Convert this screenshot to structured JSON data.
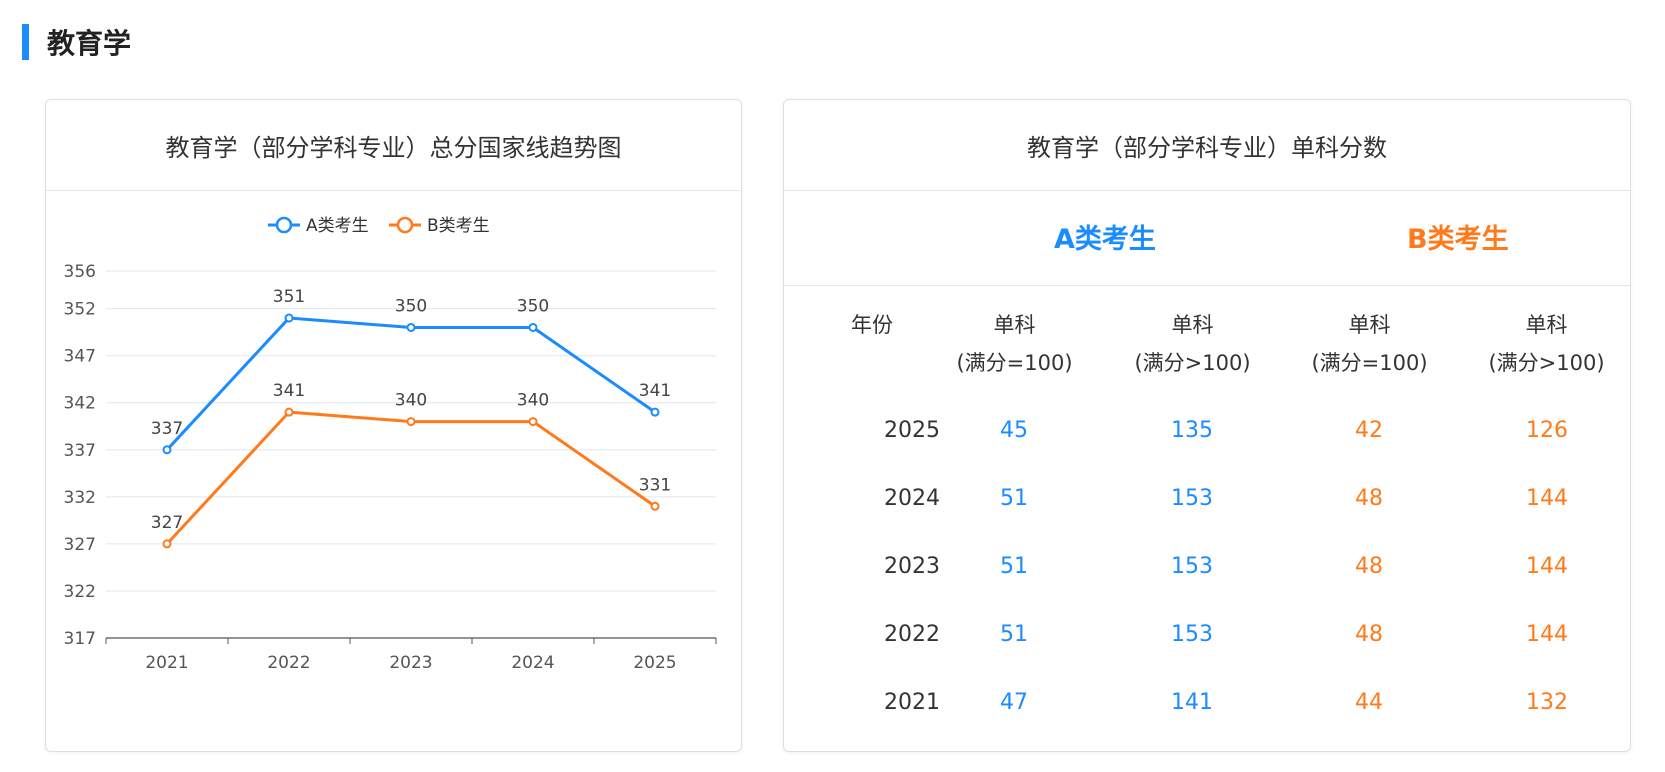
{
  "section": {
    "title": "教育学"
  },
  "chart_card": {
    "title": "教育学（部分学科专业）总分国家线趋势图"
  },
  "table_card": {
    "title": "教育学（部分学科专业）单科分数",
    "type_a": "A类考生",
    "type_b": "B类考生",
    "headers": {
      "year": "年份",
      "a_single_100": [
        "单科",
        "(满分=100)"
      ],
      "a_single_gt100": [
        "单科",
        "(满分>100)"
      ],
      "b_single_100": [
        "单科",
        "(满分=100)"
      ],
      "b_single_gt100": [
        "单科",
        "(满分>100)"
      ]
    },
    "rows": [
      {
        "year": "2025",
        "a100": "45",
        "a_gt100": "135",
        "b100": "42",
        "b_gt100": "126"
      },
      {
        "year": "2024",
        "a100": "51",
        "a_gt100": "153",
        "b100": "48",
        "b_gt100": "144"
      },
      {
        "year": "2023",
        "a100": "51",
        "a_gt100": "153",
        "b100": "48",
        "b_gt100": "144"
      },
      {
        "year": "2022",
        "a100": "51",
        "a_gt100": "153",
        "b100": "48",
        "b_gt100": "144"
      },
      {
        "year": "2021",
        "a100": "47",
        "a_gt100": "141",
        "b100": "44",
        "b_gt100": "132"
      }
    ]
  },
  "colors": {
    "a": "#1a8cff",
    "b": "#ff7a1a",
    "accent": "#1a8cff"
  },
  "chart_data": {
    "type": "line",
    "title": "教育学（部分学科专业）总分国家线趋势图",
    "categories": [
      "2021",
      "2022",
      "2023",
      "2024",
      "2025"
    ],
    "series": [
      {
        "name": "A类考生",
        "color": "#1a8cff",
        "values": [
          337,
          351,
          350,
          350,
          341
        ]
      },
      {
        "name": "B类考生",
        "color": "#ff7a1a",
        "values": [
          327,
          341,
          340,
          340,
          331
        ]
      }
    ],
    "yticks": [
      "317",
      "322",
      "327",
      "332",
      "337",
      "342",
      "347",
      "352",
      "356"
    ],
    "ylim": [
      317,
      356
    ],
    "grid": true,
    "legend": "top-center",
    "xlabel": "",
    "ylabel": ""
  }
}
